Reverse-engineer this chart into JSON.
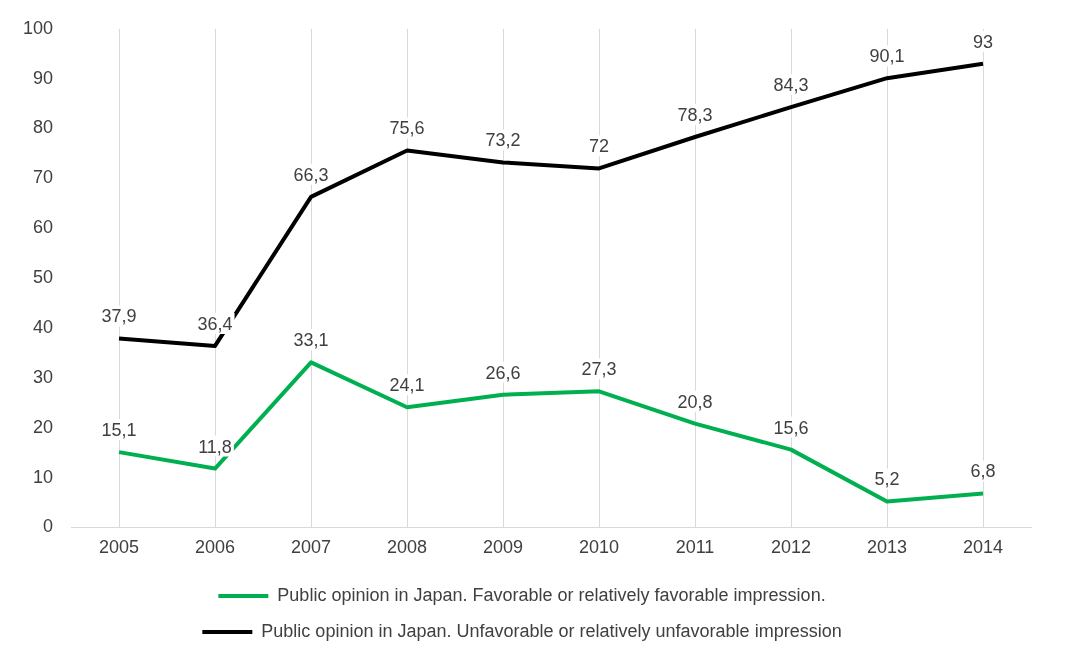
{
  "chart_data": {
    "type": "line",
    "categories": [
      "2005",
      "2006",
      "2007",
      "2008",
      "2009",
      "2010",
      "2011",
      "2012",
      "2013",
      "2014"
    ],
    "series": [
      {
        "name": "Public opinion in Japan. Favorable or relatively favorable impression.",
        "color": "#00b050",
        "values": [
          15.1,
          11.8,
          33.1,
          24.1,
          26.6,
          27.3,
          20.8,
          15.6,
          5.2,
          6.8
        ],
        "value_labels": [
          "15,1",
          "11,8",
          "33,1",
          "24,1",
          "26,6",
          "27,3",
          "20,8",
          "15,6",
          "5,2",
          "6,8"
        ]
      },
      {
        "name": "Public opinion in Japan. Unfavorable or relatively unfavorable impression",
        "color": "#000000",
        "values": [
          37.9,
          36.4,
          66.3,
          75.6,
          73.2,
          72,
          78.3,
          84.3,
          90.1,
          93
        ],
        "value_labels": [
          "37,9",
          "36,4",
          "66,3",
          "75,6",
          "73,2",
          "72",
          "78,3",
          "84,3",
          "90,1",
          "93"
        ]
      }
    ],
    "ylim": [
      0,
      100
    ],
    "yticks": [
      0,
      10,
      20,
      30,
      40,
      50,
      60,
      70,
      80,
      90,
      100
    ],
    "grid": "x",
    "legend": "bottom",
    "marker": "none",
    "line_style": "solid"
  }
}
